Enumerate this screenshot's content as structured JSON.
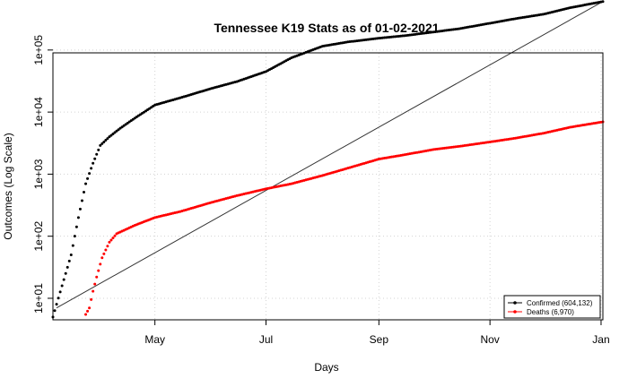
{
  "chart_data": {
    "type": "scatter",
    "title": "Tennessee K19 Stats as of 01-02-2021",
    "xlabel": "Days",
    "ylabel": "Outcomes (Log Scale)",
    "y_scale": "log",
    "xlim": [
      "2020-03-06",
      "2021-01-02"
    ],
    "ylim": [
      4.5,
      90000
    ],
    "x_ticks": [
      {
        "date": "2020-05-01",
        "label": "May"
      },
      {
        "date": "2020-07-01",
        "label": "Jul"
      },
      {
        "date": "2020-09-01",
        "label": "Sep"
      },
      {
        "date": "2020-11-01",
        "label": "Nov"
      },
      {
        "date": "2021-01-01",
        "label": "Jan"
      }
    ],
    "y_ticks": [
      {
        "value": 10,
        "label": "1e+01"
      },
      {
        "value": 100,
        "label": "1e+02"
      },
      {
        "value": 1000,
        "label": "1e+03"
      },
      {
        "value": 10000,
        "label": "1e+04"
      },
      {
        "value": 100000,
        "label": "1e+05"
      }
    ],
    "grid": true,
    "legend_position": "bottom-right",
    "series": [
      {
        "name": "Confirmed (604,132)",
        "color": "#000000",
        "anchors": [
          [
            "2020-03-06",
            5
          ],
          [
            "2020-03-08",
            8
          ],
          [
            "2020-03-12",
            20
          ],
          [
            "2020-03-16",
            50
          ],
          [
            "2020-03-20",
            200
          ],
          [
            "2020-03-24",
            700
          ],
          [
            "2020-03-28",
            1500
          ],
          [
            "2020-04-01",
            2900
          ],
          [
            "2020-04-06",
            4000
          ],
          [
            "2020-04-12",
            5500
          ],
          [
            "2020-04-20",
            8000
          ],
          [
            "2020-05-01",
            13000
          ],
          [
            "2020-05-15",
            17000
          ],
          [
            "2020-06-01",
            24000
          ],
          [
            "2020-06-15",
            31000
          ],
          [
            "2020-07-01",
            45000
          ],
          [
            "2020-07-15",
            75000
          ],
          [
            "2020-08-01",
            115000
          ],
          [
            "2020-08-15",
            135000
          ],
          [
            "2020-09-01",
            155000
          ],
          [
            "2020-09-15",
            170000
          ],
          [
            "2020-10-01",
            195000
          ],
          [
            "2020-10-15",
            220000
          ],
          [
            "2020-11-01",
            270000
          ],
          [
            "2020-11-15",
            320000
          ],
          [
            "2020-12-01",
            380000
          ],
          [
            "2020-12-15",
            480000
          ],
          [
            "2021-01-02",
            604132
          ]
        ]
      },
      {
        "name": "Deaths (6,970)",
        "color": "#ff0000",
        "anchors": [
          [
            "2020-03-24",
            5.5
          ],
          [
            "2020-03-26",
            7
          ],
          [
            "2020-03-28",
            13
          ],
          [
            "2020-03-30",
            22
          ],
          [
            "2020-04-02",
            45
          ],
          [
            "2020-04-06",
            80
          ],
          [
            "2020-04-10",
            110
          ],
          [
            "2020-04-20",
            150
          ],
          [
            "2020-05-01",
            200
          ],
          [
            "2020-05-15",
            250
          ],
          [
            "2020-06-01",
            350
          ],
          [
            "2020-06-15",
            450
          ],
          [
            "2020-07-01",
            580
          ],
          [
            "2020-07-15",
            700
          ],
          [
            "2020-08-01",
            950
          ],
          [
            "2020-08-15",
            1250
          ],
          [
            "2020-09-01",
            1750
          ],
          [
            "2020-09-15",
            2050
          ],
          [
            "2020-10-01",
            2500
          ],
          [
            "2020-10-15",
            2800
          ],
          [
            "2020-11-01",
            3300
          ],
          [
            "2020-11-15",
            3800
          ],
          [
            "2020-12-01",
            4600
          ],
          [
            "2020-12-15",
            5700
          ],
          [
            "2021-01-02",
            6970
          ]
        ]
      }
    ],
    "reference_line": {
      "color": "#333333",
      "from": [
        "2020-03-08",
        7
      ],
      "to": [
        "2021-01-02",
        604132
      ]
    }
  }
}
